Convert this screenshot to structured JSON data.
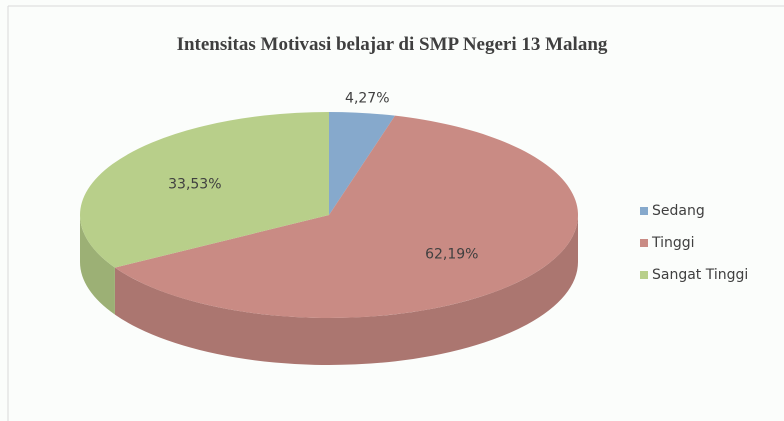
{
  "chart_data": {
    "type": "pie",
    "title": "Intensitas Motivasi belajar di SMP Negeri 13 Malang",
    "categories": [
      "Sedang",
      "Tinggi",
      "Sangat Tinggi"
    ],
    "values": [
      4.27,
      62.19,
      33.53
    ],
    "value_labels": [
      "4,27%",
      "62,19%",
      "33,53%"
    ],
    "colors": [
      "#86a9cc",
      "#c98b84",
      "#b8cf8a"
    ],
    "legend": "right"
  }
}
